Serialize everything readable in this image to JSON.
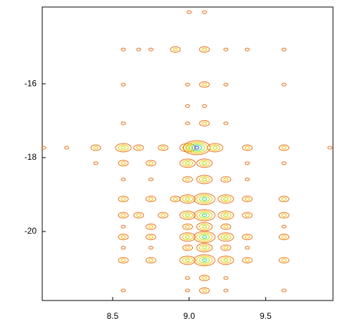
{
  "chart_data": {
    "type": "contour",
    "xlim": [
      8.04,
      9.94
    ],
    "ylim": [
      -21.87,
      -13.92
    ],
    "xticks": [
      8.5,
      {
        "value": 9,
        "label": "9.0"
      },
      9.5
    ],
    "yticks": [
      -16,
      -18,
      -20
    ],
    "colors": [
      "#e8701a",
      "#f0c000",
      "#b0e000",
      "#30d870",
      "#2050e0"
    ],
    "x": [
      9.0,
      9.1,
      8.57,
      8.67,
      8.75,
      8.91,
      9.1,
      9.24,
      9.38,
      9.62,
      8.57,
      8.99,
      9.1,
      9.24,
      9.62,
      8.99,
      9.1,
      8.57,
      8.99,
      9.1,
      9.24,
      8.05,
      8.2,
      8.39,
      8.57,
      8.67,
      8.83,
      8.99,
      9.05,
      9.17,
      9.38,
      9.62,
      9.92,
      8.39,
      8.57,
      8.75,
      8.99,
      9.1,
      9.38,
      9.62,
      8.57,
      8.75,
      8.99,
      9.1,
      9.24,
      9.38,
      8.57,
      8.75,
      8.91,
      8.99,
      9.1,
      9.24,
      9.38,
      9.62,
      8.57,
      8.67,
      8.83,
      8.99,
      9.1,
      9.24,
      9.38,
      9.62,
      8.57,
      8.75,
      8.99,
      9.1,
      9.24,
      9.62,
      8.57,
      8.75,
      8.99,
      9.1,
      9.24,
      9.38,
      9.62,
      8.57,
      8.75,
      8.99,
      9.1,
      9.24,
      9.38,
      8.57,
      8.75,
      8.99,
      9.1,
      9.24,
      9.38,
      9.62,
      8.99,
      9.1,
      9.24,
      8.57,
      8.99,
      9.1,
      9.24,
      9.62
    ],
    "y": [
      -14.06,
      -14.06,
      -15.07,
      -15.07,
      -15.07,
      -15.07,
      -15.07,
      -15.07,
      -15.07,
      -15.07,
      -16.02,
      -16.02,
      -16.02,
      -16.02,
      -16.02,
      -16.6,
      -16.6,
      -17.07,
      -17.07,
      -17.07,
      -17.07,
      -17.73,
      -17.73,
      -17.73,
      -17.73,
      -17.73,
      -17.73,
      -17.73,
      -17.73,
      -17.73,
      -17.73,
      -17.73,
      -17.73,
      -18.15,
      -18.15,
      -18.15,
      -18.15,
      -18.15,
      -18.15,
      -18.15,
      -18.59,
      -18.59,
      -18.59,
      -18.59,
      -18.59,
      -18.59,
      -19.12,
      -19.12,
      -19.12,
      -19.12,
      -19.12,
      -19.12,
      -19.12,
      -19.12,
      -19.56,
      -19.56,
      -19.56,
      -19.56,
      -19.56,
      -19.56,
      -19.56,
      -19.56,
      -19.87,
      -19.87,
      -19.87,
      -19.87,
      -19.87,
      -19.87,
      -20.15,
      -20.15,
      -20.15,
      -20.15,
      -20.15,
      -20.15,
      -20.15,
      -20.44,
      -20.44,
      -20.44,
      -20.44,
      -20.44,
      -20.44,
      -20.78,
      -20.78,
      -20.78,
      -20.78,
      -20.78,
      -20.78,
      -20.78,
      -21.26,
      -21.26,
      -21.26,
      -21.6,
      -21.6,
      -21.6,
      -21.6,
      -21.6
    ],
    "z": [
      1,
      1,
      1,
      1,
      1,
      2,
      2,
      1,
      1,
      1,
      1,
      1,
      2,
      1,
      1,
      1,
      1,
      1,
      1,
      2,
      1,
      1,
      1,
      2,
      3,
      2,
      2,
      3,
      5,
      3,
      2,
      2,
      1,
      1,
      2,
      2,
      3,
      3,
      1,
      1,
      1,
      1,
      2,
      3,
      2,
      1,
      2,
      2,
      2,
      3,
      4,
      3,
      2,
      2,
      2,
      2,
      2,
      3,
      4,
      3,
      2,
      2,
      1,
      2,
      2,
      3,
      2,
      1,
      2,
      2,
      3,
      4,
      3,
      2,
      2,
      1,
      1,
      2,
      3,
      2,
      1,
      2,
      2,
      3,
      4,
      3,
      2,
      2,
      1,
      2,
      1,
      1,
      1,
      2,
      1,
      1
    ]
  }
}
